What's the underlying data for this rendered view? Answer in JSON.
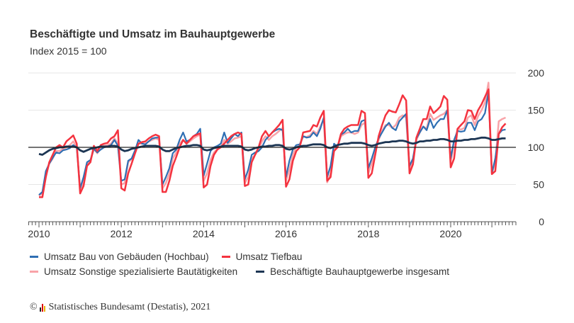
{
  "chart_data": {
    "type": "line",
    "title": "Beschäftigte und Umsatz im Bauhauptgewerbe",
    "subtitle": "Index 2015 = 100",
    "frequency": "monthly",
    "x_range": [
      "2010-01",
      "2021-05"
    ],
    "x_ticks": [
      "2010",
      "2012",
      "2014",
      "2016",
      "2018",
      "2020"
    ],
    "y_ticks": [
      0,
      50,
      100,
      150,
      200
    ],
    "ylim": [
      0,
      200
    ],
    "reference_line": 100,
    "grid": true,
    "y_axis_side": "right",
    "legend_placement": "bottom",
    "series": [
      {
        "name": "Umsatz Bau von Gebäuden (Hochbau)",
        "color": "#2f6fb3",
        "values_by_year": {
          "2010": [
            36,
            40,
            68,
            78,
            86,
            93,
            92,
            96,
            97,
            99,
            103,
            100
          ],
          "2011": [
            45,
            60,
            80,
            83,
            98,
            93,
            97,
            100,
            101,
            103,
            110,
            102
          ],
          "2012": [
            55,
            57,
            82,
            85,
            96,
            110,
            105,
            104,
            108,
            112,
            113,
            113
          ],
          "2013": [
            50,
            60,
            72,
            92,
            97,
            110,
            120,
            108,
            110,
            115,
            118,
            125
          ],
          "2014": [
            62,
            78,
            95,
            100,
            102,
            105,
            120,
            106,
            112,
            118,
            115,
            120
          ],
          "2015": [
            57,
            70,
            90,
            93,
            95,
            100,
            110,
            115,
            120,
            123,
            125,
            123
          ],
          "2016": [
            60,
            82,
            97,
            103,
            104,
            115,
            113,
            114,
            120,
            115,
            125,
            140
          ],
          "2017": [
            60,
            75,
            105,
            100,
            117,
            120,
            125,
            120,
            122,
            122,
            135,
            137
          ],
          "2018": [
            72,
            85,
            100,
            112,
            120,
            128,
            133,
            126,
            123,
            135,
            140,
            145
          ],
          "2019": [
            75,
            85,
            112,
            120,
            128,
            123,
            138,
            126,
            133,
            138,
            138,
            150
          ],
          "2020": [
            85,
            110,
            122,
            121,
            122,
            133,
            133,
            123,
            135,
            138,
            146,
            175
          ],
          "2021": [
            65,
            85,
            118,
            123,
            124
          ]
        }
      },
      {
        "name": "Umsatz Tiefbau",
        "color": "#f4333f",
        "values_by_year": {
          "2010": [
            33,
            33,
            60,
            80,
            90,
            100,
            103,
            100,
            108,
            112,
            116,
            105
          ],
          "2011": [
            38,
            48,
            75,
            80,
            102,
            95,
            103,
            105,
            106,
            112,
            115,
            123
          ],
          "2012": [
            45,
            42,
            65,
            78,
            92,
            105,
            107,
            108,
            112,
            115,
            117,
            115
          ],
          "2013": [
            40,
            40,
            55,
            75,
            87,
            100,
            110,
            105,
            110,
            115,
            117,
            119
          ],
          "2014": [
            46,
            50,
            75,
            90,
            97,
            100,
            105,
            110,
            115,
            118,
            120,
            118
          ],
          "2015": [
            48,
            50,
            80,
            90,
            100,
            115,
            122,
            115,
            120,
            125,
            130,
            137
          ],
          "2016": [
            47,
            57,
            82,
            95,
            100,
            120,
            121,
            122,
            130,
            128,
            140,
            149
          ],
          "2017": [
            55,
            60,
            95,
            100,
            118,
            125,
            128,
            130,
            130,
            130,
            149,
            146
          ],
          "2018": [
            59,
            65,
            90,
            115,
            130,
            143,
            150,
            148,
            147,
            158,
            170,
            163
          ],
          "2019": [
            65,
            77,
            113,
            125,
            138,
            138,
            155,
            146,
            150,
            155,
            169,
            164
          ],
          "2020": [
            73,
            85,
            125,
            130,
            135,
            150,
            149,
            138,
            150,
            158,
            168,
            178
          ],
          "2021": [
            64,
            68,
            118,
            127,
            132
          ]
        }
      },
      {
        "name": "Umsatz Sonstige spezialisierte Bautätigkeiten",
        "color": "#f9a3a8",
        "values_by_year": {
          "2010": [
            35,
            38,
            62,
            78,
            85,
            95,
            95,
            98,
            100,
            103,
            108,
            100
          ],
          "2011": [
            42,
            55,
            78,
            82,
            98,
            92,
            100,
            102,
            103,
            105,
            112,
            105
          ],
          "2012": [
            50,
            52,
            80,
            84,
            95,
            105,
            105,
            105,
            108,
            110,
            112,
            110
          ],
          "2013": [
            45,
            52,
            65,
            85,
            93,
            105,
            110,
            105,
            108,
            112,
            115,
            117
          ],
          "2014": [
            55,
            65,
            83,
            93,
            98,
            100,
            110,
            105,
            108,
            112,
            113,
            115
          ],
          "2015": [
            52,
            60,
            85,
            90,
            97,
            108,
            115,
            110,
            115,
            118,
            122,
            126
          ],
          "2016": [
            55,
            70,
            90,
            100,
            102,
            115,
            114,
            116,
            122,
            118,
            128,
            138
          ],
          "2017": [
            53,
            65,
            98,
            100,
            115,
            118,
            120,
            120,
            118,
            120,
            130,
            133
          ],
          "2018": [
            65,
            78,
            98,
            110,
            122,
            130,
            130,
            126,
            130,
            140,
            143,
            140
          ],
          "2019": [
            70,
            82,
            110,
            120,
            128,
            125,
            145,
            137,
            140,
            143,
            145,
            150
          ],
          "2020": [
            80,
            105,
            125,
            124,
            126,
            140,
            143,
            130,
            142,
            150,
            160,
            187
          ],
          "2021": [
            65,
            80,
            135,
            138,
            140
          ]
        }
      },
      {
        "name": "Beschäftigte Bauhauptgewerbe insgesamt",
        "color": "#1c3553",
        "values_by_year": {
          "2010": [
            91,
            90,
            93,
            96,
            98,
            99,
            100,
            100,
            101,
            101,
            101,
            100
          ],
          "2011": [
            96,
            94,
            96,
            98,
            99,
            100,
            101,
            101,
            101,
            102,
            102,
            101
          ],
          "2012": [
            97,
            95,
            96,
            98,
            99,
            100,
            101,
            102,
            102,
            102,
            102,
            101
          ],
          "2013": [
            97,
            95,
            95,
            97,
            99,
            100,
            101,
            102,
            102,
            103,
            103,
            102
          ],
          "2014": [
            97,
            96,
            97,
            99,
            100,
            101,
            102,
            102,
            102,
            102,
            102,
            101
          ],
          "2015": [
            97,
            96,
            97,
            99,
            100,
            101,
            101,
            102,
            102,
            103,
            103,
            102
          ],
          "2016": [
            98,
            97,
            98,
            100,
            101,
            102,
            102,
            103,
            104,
            104,
            104,
            103
          ],
          "2017": [
            100,
            99,
            101,
            103,
            104,
            105,
            105,
            106,
            106,
            106,
            106,
            105
          ],
          "2018": [
            103,
            102,
            103,
            105,
            106,
            107,
            107,
            108,
            108,
            109,
            109,
            108
          ],
          "2019": [
            106,
            105,
            106,
            108,
            108,
            109,
            109,
            110,
            110,
            111,
            111,
            110
          ],
          "2020": [
            108,
            108,
            109,
            109,
            110,
            110,
            111,
            111,
            112,
            113,
            113,
            112
          ],
          "2021": [
            110,
            110,
            111,
            112,
            112
          ]
        }
      }
    ]
  },
  "footer": {
    "copyright_symbol": "©",
    "source": "Statistisches Bundesamt (Destatis), 2021"
  }
}
